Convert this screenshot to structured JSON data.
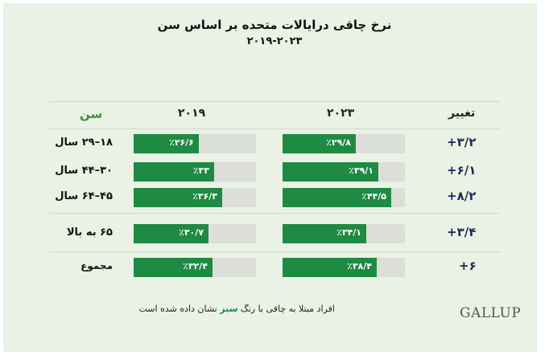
{
  "title": "نرخ چاقی درایالات متحده بر اساس سن",
  "subtitle": "۲۰۱۹-۲۰۲۳",
  "headers": {
    "change": "تغییر",
    "y2023": "۲۰۲۳",
    "y2019": "۲۰۱۹",
    "age": "سن"
  },
  "colors": {
    "fill": "#1f8a43",
    "track": "#dcdfd8",
    "panel": "#e9f2e5",
    "header_age": "#3f8e3a"
  },
  "rows": [
    {
      "age": "۱۸–۲۹ سال",
      "v2019": "٪۲۶/۶",
      "v2023": "٪۲۹/۸",
      "change": "+۳/۲"
    },
    {
      "age": "۳۰–۴۴ سال",
      "v2019": "٪۳۳",
      "v2023": "٪۳۹/۱",
      "change": "+۶/۱"
    },
    {
      "age": "۴۵–۶۴ سال",
      "v2019": "٪۳۶/۳",
      "v2023": "٪۴۴/۵",
      "change": "+۸/۲"
    },
    {
      "age": "۶۵ به بالا",
      "v2019": "٪۳۰/۷",
      "v2023": "٪۳۴/۱",
      "change": "+۳/۴"
    }
  ],
  "total": {
    "age": "مجموع",
    "v2019": "٪۳۲/۴",
    "v2023": "٪۳۸/۴",
    "change": "+۶"
  },
  "footnote": {
    "before": "افراد مبتلا به چاقی با رنگ ",
    "green": "سبز",
    "after": " نشان داده شده است"
  },
  "logo": "GALLUP",
  "chart_data": {
    "type": "bar",
    "title": "نرخ چاقی درایالات متحده بر اساس سن",
    "subtitle": "۲۰۱۹-۲۰۲۳",
    "categories": [
      "۱۸–۲۹ سال",
      "۳۰–۴۴ سال",
      "۴۵–۶۴ سال",
      "۶۵ به بالا",
      "مجموع"
    ],
    "series": [
      {
        "name": "۲۰۱۹",
        "values": [
          26.6,
          33,
          36.3,
          30.7,
          32.4
        ]
      },
      {
        "name": "۲۰۲۳",
        "values": [
          29.8,
          39.1,
          44.5,
          34.1,
          38.4
        ]
      }
    ],
    "change": [
      3.2,
      6.1,
      8.2,
      3.4,
      6
    ],
    "xlim": [
      0,
      100
    ]
  }
}
